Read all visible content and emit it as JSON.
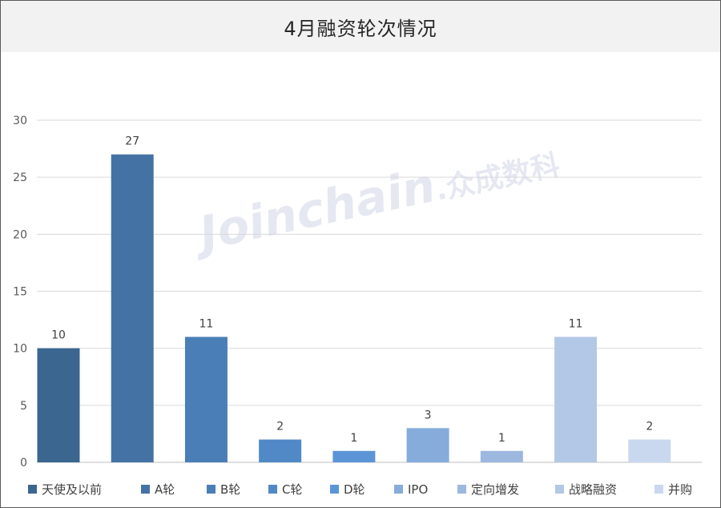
{
  "chart_data": {
    "type": "bar",
    "title": "4月融资轮次情况",
    "categories": [
      "天使及以前",
      "A轮",
      "B轮",
      "C轮",
      "D轮",
      "IPO",
      "定向增发",
      "战略融资",
      "并购"
    ],
    "values": [
      10,
      27,
      11,
      2,
      1,
      3,
      1,
      11,
      2
    ],
    "colors": [
      "#3a6690",
      "#4472a4",
      "#4a7eb7",
      "#5089c6",
      "#5b95d6",
      "#85acdb",
      "#9cb8df",
      "#b3c8e6",
      "#c9d8ee"
    ],
    "ylim": [
      0,
      30
    ],
    "yticks": [
      0,
      5,
      10,
      15,
      20,
      25,
      30
    ],
    "xlabel": "",
    "ylabel": "",
    "grid": true,
    "legend_position": "bottom",
    "data_labels": true
  },
  "watermark": {
    "latin": "Joinchain",
    "cjk": ".众成数科"
  }
}
